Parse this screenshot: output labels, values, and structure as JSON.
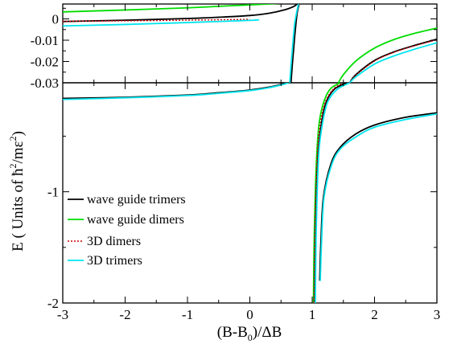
{
  "chart_data": {
    "type": "line",
    "xlabel": "(B-B0)/ΔB",
    "xlabel_parts": {
      "main": "(B-B",
      "sub": "0",
      "tail": ")/ΔB"
    },
    "ylabel": "E ( Units of ħ²/mε² )",
    "ylabel_parts": {
      "prefix": "E  ( Units of  ",
      "hbar": "ħ",
      "sup1": "2",
      "mid": "/mε",
      "sup2": "2",
      "suffix": ")"
    },
    "xlim": [
      -3,
      3
    ],
    "x_ticks": [
      -3,
      -2,
      -1,
      0,
      1,
      2,
      3
    ],
    "x_tick_labels": [
      "-3",
      "-2",
      "-1",
      "0",
      "1",
      "2",
      "3"
    ],
    "grid": false,
    "legend_position": "lower-left",
    "panels": [
      {
        "name": "inset",
        "ylim": [
          -0.03,
          0.007
        ],
        "y_ticks": [
          0,
          -0.01,
          -0.02,
          -0.03
        ],
        "y_tick_labels": [
          "0",
          "-0.01",
          "-0.02",
          "-0.03"
        ],
        "series": [
          {
            "ref": "wg_dimers",
            "points": [
              [
                -3,
                0.0033
              ],
              [
                -2,
                0.0042
              ],
              [
                -1,
                0.0052
              ],
              [
                -0.5,
                0.0059
              ],
              [
                0,
                0.0066
              ],
              [
                0.4,
                0.0072
              ],
              [
                0.79,
                0.0078
              ]
            ]
          },
          {
            "ref": "wg_trimers",
            "points": [
              [
                -3,
                -0.0012
              ],
              [
                -2,
                -0.0006
              ],
              [
                -1,
                0.0002
              ],
              [
                -0.5,
                0.0008
              ],
              [
                0,
                0.0016
              ],
              [
                0.3,
                0.0026
              ],
              [
                0.55,
                0.0042
              ],
              [
                0.7,
                0.0058
              ],
              [
                0.78,
                0.0075
              ]
            ]
          },
          {
            "ref": "d3_dimers",
            "points": [
              [
                -3,
                -0.0011
              ],
              [
                -2,
                -0.0009
              ],
              [
                -1,
                -0.0006
              ],
              [
                -0.5,
                -0.0004
              ],
              [
                0,
                -0.0002
              ]
            ]
          },
          {
            "ref": "d3_trimers",
            "points": [
              [
                -3,
                -0.0033
              ],
              [
                -2,
                -0.0026
              ],
              [
                -1,
                -0.0017
              ],
              [
                -0.5,
                -0.0012
              ],
              [
                0,
                -0.0007
              ],
              [
                0.15,
                -0.0004
              ]
            ]
          },
          {
            "ref": "wg_trimers",
            "points": [
              [
                0.66,
                -0.03
              ],
              [
                0.68,
                -0.022
              ],
              [
                0.7,
                -0.015
              ],
              [
                0.72,
                -0.008
              ],
              [
                0.74,
                -0.002
              ],
              [
                0.76,
                0.003
              ],
              [
                0.79,
                0.007
              ]
            ]
          },
          {
            "ref": "d3_trimers",
            "points": [
              [
                0.64,
                -0.03
              ],
              [
                0.66,
                -0.022
              ],
              [
                0.68,
                -0.015
              ],
              [
                0.7,
                -0.008
              ],
              [
                0.72,
                -0.002
              ],
              [
                0.75,
                0.003
              ],
              [
                0.78,
                0.007
              ]
            ]
          },
          {
            "ref": "wg_dimers",
            "points": [
              [
                1.42,
                -0.03
              ],
              [
                1.5,
                -0.0262
              ],
              [
                1.7,
                -0.0198
              ],
              [
                2.0,
                -0.0137
              ],
              [
                2.3,
                -0.0098
              ],
              [
                2.6,
                -0.0071
              ],
              [
                3.0,
                -0.0043
              ]
            ]
          },
          {
            "ref": "wg_trimers",
            "points": [
              [
                1.6,
                -0.03
              ],
              [
                1.7,
                -0.0262
              ],
              [
                2.0,
                -0.0195
              ],
              [
                2.3,
                -0.0156
              ],
              [
                2.6,
                -0.0128
              ],
              [
                3.0,
                -0.0095
              ]
            ]
          },
          {
            "ref": "d3_dimers",
            "points": [
              [
                1.6,
                -0.03
              ],
              [
                1.7,
                -0.0265
              ],
              [
                2.0,
                -0.0198
              ],
              [
                2.3,
                -0.0158
              ],
              [
                2.6,
                -0.013
              ],
              [
                3.0,
                -0.0098
              ]
            ]
          },
          {
            "ref": "d3_trimers",
            "points": [
              [
                1.6,
                -0.03
              ],
              [
                1.7,
                -0.0272
              ],
              [
                2.0,
                -0.0212
              ],
              [
                2.3,
                -0.0175
              ],
              [
                2.6,
                -0.0146
              ],
              [
                3.0,
                -0.0112
              ]
            ]
          }
        ]
      },
      {
        "name": "main",
        "ylim": [
          -2,
          -0.02
        ],
        "y_ticks": [
          -1,
          -2
        ],
        "y_tick_labels": [
          "-1",
          "-2"
        ],
        "series": [
          {
            "ref": "wg_trimers",
            "points": [
              [
                -3,
                -0.16
              ],
              [
                -2,
                -0.15
              ],
              [
                -1,
                -0.13
              ],
              [
                -0.5,
                -0.11
              ],
              [
                0,
                -0.085
              ],
              [
                0.3,
                -0.06
              ],
              [
                0.5,
                -0.035
              ],
              [
                0.6,
                -0.02
              ]
            ]
          },
          {
            "ref": "d3_trimers",
            "points": [
              [
                -3,
                -0.17
              ],
              [
                -2,
                -0.155
              ],
              [
                -1,
                -0.135
              ],
              [
                -0.5,
                -0.115
              ],
              [
                0,
                -0.09
              ],
              [
                0.3,
                -0.065
              ],
              [
                0.5,
                -0.04
              ],
              [
                0.62,
                -0.02
              ]
            ]
          },
          {
            "ref": "wg_dimers",
            "points": [
              [
                1.02,
                -2
              ],
              [
                1.03,
                -1.5
              ],
              [
                1.05,
                -1.0
              ],
              [
                1.08,
                -0.6
              ],
              [
                1.12,
                -0.35
              ],
              [
                1.2,
                -0.17
              ],
              [
                1.3,
                -0.07
              ],
              [
                1.45,
                -0.02
              ]
            ]
          },
          {
            "ref": "wg_trimers",
            "points": [
              [
                1.04,
                -2
              ],
              [
                1.05,
                -1.5
              ],
              [
                1.07,
                -1.0
              ],
              [
                1.1,
                -0.62
              ],
              [
                1.15,
                -0.38
              ],
              [
                1.22,
                -0.2
              ],
              [
                1.35,
                -0.08
              ],
              [
                1.55,
                -0.02
              ]
            ]
          },
          {
            "ref": "d3_dimers",
            "points": [
              [
                1.03,
                -2
              ],
              [
                1.04,
                -1.5
              ],
              [
                1.06,
                -1.0
              ],
              [
                1.09,
                -0.6
              ],
              [
                1.14,
                -0.35
              ],
              [
                1.22,
                -0.18
              ],
              [
                1.35,
                -0.07
              ],
              [
                1.5,
                -0.02
              ]
            ]
          },
          {
            "ref": "d3_trimers",
            "points": [
              [
                1.05,
                -2
              ],
              [
                1.06,
                -1.5
              ],
              [
                1.08,
                -1.0
              ],
              [
                1.11,
                -0.62
              ],
              [
                1.17,
                -0.37
              ],
              [
                1.25,
                -0.19
              ],
              [
                1.4,
                -0.08
              ],
              [
                1.6,
                -0.02
              ]
            ]
          },
          {
            "ref": "wg_trimers",
            "points": [
              [
                1.12,
                -1.8
              ],
              [
                1.14,
                -1.45
              ],
              [
                1.18,
                -1.05
              ],
              [
                1.3,
                -0.75
              ],
              [
                1.45,
                -0.6
              ],
              [
                1.7,
                -0.48
              ],
              [
                2.0,
                -0.4
              ],
              [
                2.5,
                -0.33
              ],
              [
                3.0,
                -0.29
              ]
            ]
          },
          {
            "ref": "d3_trimers",
            "points": [
              [
                1.13,
                -1.8
              ],
              [
                1.15,
                -1.45
              ],
              [
                1.19,
                -1.05
              ],
              [
                1.31,
                -0.76
              ],
              [
                1.46,
                -0.61
              ],
              [
                1.72,
                -0.5
              ],
              [
                2.0,
                -0.42
              ],
              [
                2.5,
                -0.35
              ],
              [
                3.0,
                -0.3
              ]
            ]
          }
        ]
      }
    ],
    "legend": [
      {
        "id": "wg_trimers",
        "name": "wave guide trimers",
        "color": "#000000",
        "dash": "solid"
      },
      {
        "id": "wg_dimers",
        "name": "wave guide dimers",
        "color": "#00dd00",
        "dash": "solid"
      },
      {
        "id": "d3_dimers",
        "name": "3D dimers",
        "color": "#cc0000",
        "dash": "dotted"
      },
      {
        "id": "d3_trimers",
        "name": "3D trimers",
        "color": "#00e5ee",
        "dash": "solid"
      }
    ]
  }
}
